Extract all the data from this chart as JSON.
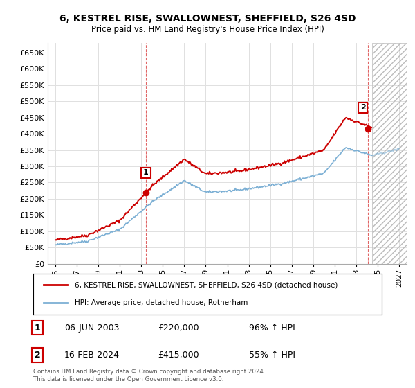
{
  "title": "6, KESTREL RISE, SWALLOWNEST, SHEFFIELD, S26 4SD",
  "subtitle": "Price paid vs. HM Land Registry's House Price Index (HPI)",
  "legend_house": "6, KESTREL RISE, SWALLOWNEST, SHEFFIELD, S26 4SD (detached house)",
  "legend_hpi": "HPI: Average price, detached house, Rotherham",
  "annotation1_date": "06-JUN-2003",
  "annotation1_price": "£220,000",
  "annotation1_hpi": "96% ↑ HPI",
  "annotation2_date": "16-FEB-2024",
  "annotation2_price": "£415,000",
  "annotation2_hpi": "55% ↑ HPI",
  "footer": "Contains HM Land Registry data © Crown copyright and database right 2024.\nThis data is licensed under the Open Government Licence v3.0.",
  "house_color": "#cc0000",
  "hpi_color": "#7bafd4",
  "ylim": [
    0,
    680000
  ],
  "yticks": [
    0,
    50000,
    100000,
    150000,
    200000,
    250000,
    300000,
    350000,
    400000,
    450000,
    500000,
    550000,
    600000,
    650000
  ],
  "background_color": "#ffffff",
  "grid_color": "#e0e0e0",
  "point1_x": 2003.43,
  "point1_y": 220000,
  "point2_x": 2024.12,
  "point2_y": 415000,
  "hpi_start_year": 1995,
  "hpi_end_year": 2027,
  "xlim_left": 1994.3,
  "xlim_right": 2027.7,
  "hatch_start": 2024.5
}
